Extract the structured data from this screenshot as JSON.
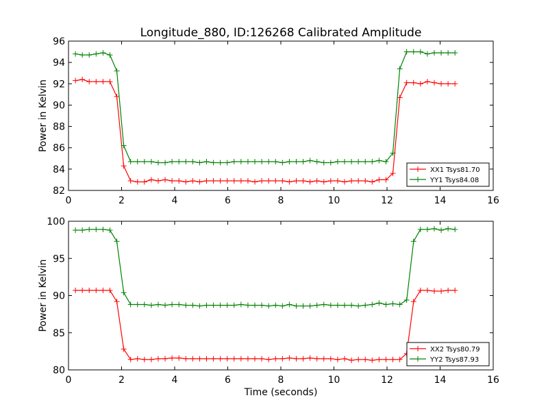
{
  "figure": {
    "title": "Longitude_880, ID:126268 Calibrated Amplitude",
    "colors": {
      "red": "#ff0000",
      "green": "#008000"
    }
  },
  "chart_data": [
    {
      "type": "line",
      "title": "Longitude_880, ID:126268 Calibrated Amplitude",
      "xlabel": "",
      "ylabel": "Power in Kelvin",
      "xlim": [
        0,
        16
      ],
      "ylim": [
        82,
        96
      ],
      "xticks": [
        0,
        2,
        4,
        6,
        8,
        10,
        12,
        14,
        16
      ],
      "yticks": [
        82,
        84,
        86,
        88,
        90,
        92,
        94,
        96
      ],
      "legend_position": "bottom-right",
      "x": [
        0.26,
        0.52,
        0.78,
        1.04,
        1.3,
        1.56,
        1.82,
        2.08,
        2.34,
        2.6,
        2.86,
        3.12,
        3.38,
        3.64,
        3.9,
        4.16,
        4.42,
        4.68,
        4.94,
        5.2,
        5.46,
        5.72,
        5.98,
        6.24,
        6.5,
        6.76,
        7.02,
        7.28,
        7.54,
        7.8,
        8.06,
        8.32,
        8.58,
        8.84,
        9.1,
        9.36,
        9.62,
        9.88,
        10.14,
        10.4,
        10.66,
        10.92,
        11.18,
        11.44,
        11.7,
        11.96,
        12.22,
        12.48,
        12.74,
        13.0,
        13.26,
        13.52,
        13.78,
        14.04,
        14.3,
        14.56
      ],
      "series": [
        {
          "name": "XX1 Tsys81.70",
          "color": "#ff0000",
          "values": [
            92.3,
            92.4,
            92.2,
            92.2,
            92.2,
            92.2,
            90.8,
            84.3,
            82.9,
            82.8,
            82.8,
            83.0,
            82.9,
            83.0,
            82.9,
            82.9,
            82.8,
            82.9,
            82.8,
            82.9,
            82.9,
            82.9,
            82.9,
            82.9,
            82.9,
            82.9,
            82.8,
            82.9,
            82.9,
            82.9,
            82.9,
            82.8,
            82.9,
            82.9,
            82.8,
            82.9,
            82.8,
            82.9,
            82.9,
            82.8,
            82.9,
            82.9,
            82.9,
            82.8,
            83.0,
            83.0,
            83.6,
            90.7,
            92.1,
            92.1,
            92.0,
            92.2,
            92.1,
            92.0,
            92.0,
            92.0
          ]
        },
        {
          "name": "YY1 Tsys84.08",
          "color": "#008000",
          "values": [
            94.8,
            94.7,
            94.7,
            94.8,
            94.9,
            94.7,
            93.2,
            86.2,
            84.7,
            84.7,
            84.7,
            84.7,
            84.6,
            84.6,
            84.7,
            84.7,
            84.7,
            84.7,
            84.6,
            84.7,
            84.6,
            84.6,
            84.6,
            84.7,
            84.7,
            84.7,
            84.7,
            84.7,
            84.7,
            84.7,
            84.6,
            84.7,
            84.7,
            84.7,
            84.8,
            84.7,
            84.6,
            84.6,
            84.7,
            84.7,
            84.7,
            84.7,
            84.7,
            84.7,
            84.8,
            84.7,
            85.5,
            93.4,
            95.0,
            95.0,
            95.0,
            94.8,
            94.9,
            94.9,
            94.9,
            94.9
          ]
        }
      ]
    },
    {
      "type": "line",
      "title": "",
      "xlabel": "Time (seconds)",
      "ylabel": "Power in Kelvin",
      "xlim": [
        0,
        16
      ],
      "ylim": [
        80,
        100
      ],
      "xticks": [
        0,
        2,
        4,
        6,
        8,
        10,
        12,
        14,
        16
      ],
      "yticks": [
        80,
        85,
        90,
        95,
        100
      ],
      "legend_position": "bottom-right",
      "x": [
        0.26,
        0.52,
        0.78,
        1.04,
        1.3,
        1.56,
        1.82,
        2.08,
        2.34,
        2.6,
        2.86,
        3.12,
        3.38,
        3.64,
        3.9,
        4.16,
        4.42,
        4.68,
        4.94,
        5.2,
        5.46,
        5.72,
        5.98,
        6.24,
        6.5,
        6.76,
        7.02,
        7.28,
        7.54,
        7.8,
        8.06,
        8.32,
        8.58,
        8.84,
        9.1,
        9.36,
        9.62,
        9.88,
        10.14,
        10.4,
        10.66,
        10.92,
        11.18,
        11.44,
        11.7,
        11.96,
        12.22,
        12.48,
        12.74,
        13.0,
        13.26,
        13.52,
        13.78,
        14.04,
        14.3,
        14.56
      ],
      "series": [
        {
          "name": "XX2 Tsys80.79",
          "color": "#ff0000",
          "values": [
            90.7,
            90.7,
            90.7,
            90.7,
            90.7,
            90.7,
            89.2,
            82.8,
            81.4,
            81.5,
            81.4,
            81.4,
            81.5,
            81.5,
            81.6,
            81.6,
            81.5,
            81.5,
            81.5,
            81.5,
            81.5,
            81.5,
            81.5,
            81.5,
            81.5,
            81.5,
            81.5,
            81.5,
            81.4,
            81.5,
            81.5,
            81.6,
            81.5,
            81.5,
            81.6,
            81.5,
            81.5,
            81.5,
            81.4,
            81.5,
            81.3,
            81.4,
            81.4,
            81.3,
            81.4,
            81.4,
            81.4,
            81.4,
            82.2,
            89.2,
            90.7,
            90.7,
            90.6,
            90.6,
            90.7,
            90.7
          ]
        },
        {
          "name": "YY2 Tsys87.93",
          "color": "#008000",
          "values": [
            98.8,
            98.8,
            98.9,
            98.9,
            98.9,
            98.8,
            97.3,
            90.4,
            88.8,
            88.8,
            88.8,
            88.7,
            88.8,
            88.7,
            88.8,
            88.8,
            88.7,
            88.7,
            88.6,
            88.7,
            88.7,
            88.7,
            88.7,
            88.7,
            88.8,
            88.7,
            88.7,
            88.7,
            88.6,
            88.7,
            88.6,
            88.8,
            88.6,
            88.6,
            88.6,
            88.7,
            88.8,
            88.7,
            88.7,
            88.7,
            88.7,
            88.6,
            88.7,
            88.8,
            89.0,
            88.8,
            88.9,
            88.8,
            89.4,
            97.3,
            98.9,
            98.9,
            99.0,
            98.8,
            99.0,
            98.9
          ]
        }
      ]
    }
  ]
}
